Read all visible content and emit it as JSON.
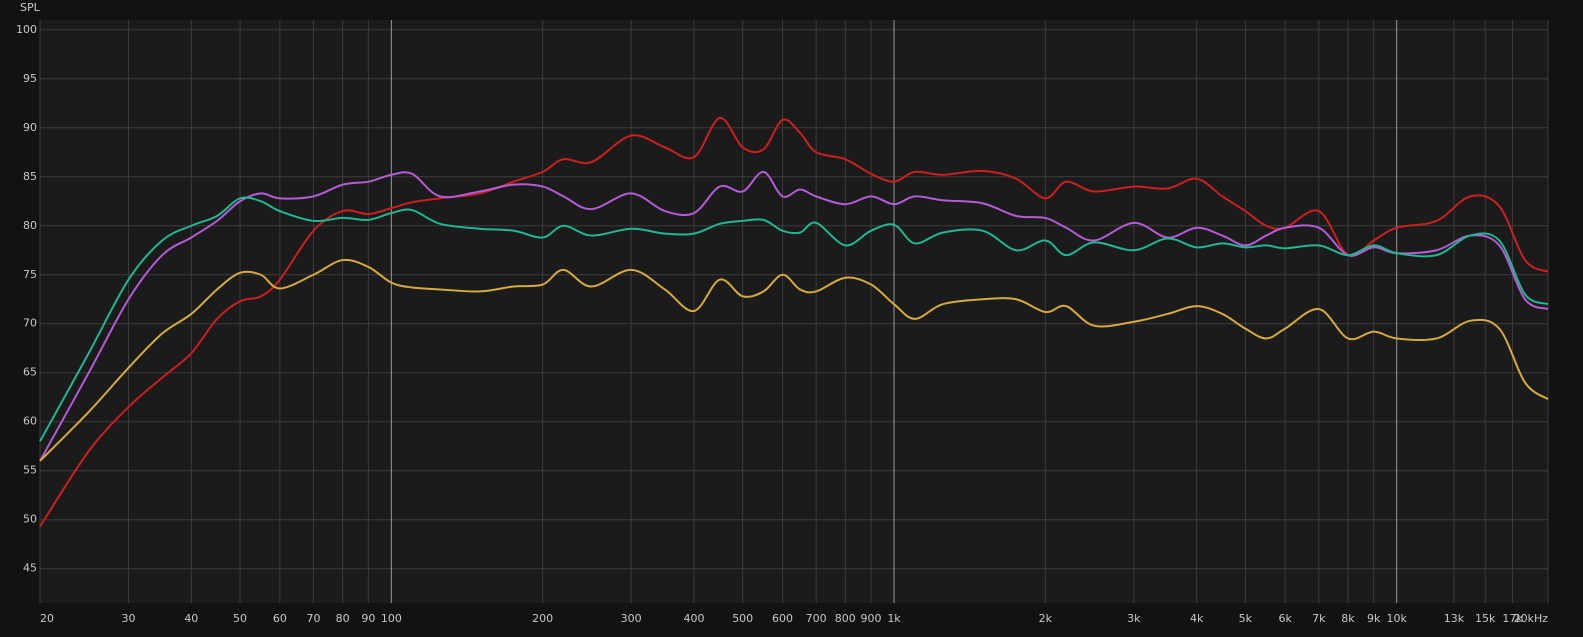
{
  "chart_data": {
    "type": "line",
    "y_label": "SPL",
    "log_x": true,
    "grid": true,
    "xlim": [
      20,
      20000
    ],
    "ylim": [
      41.5,
      101
    ],
    "yticks": [
      45,
      50,
      55,
      60,
      65,
      70,
      75,
      80,
      85,
      90,
      95,
      100
    ],
    "xticks": [
      20,
      30,
      40,
      50,
      60,
      70,
      80,
      90,
      100,
      200,
      300,
      400,
      500,
      600,
      700,
      800,
      900,
      {
        "value": 1000,
        "label": "1k"
      },
      {
        "value": 2000,
        "label": "2k"
      },
      {
        "value": 3000,
        "label": "3k"
      },
      {
        "value": 4000,
        "label": "4k"
      },
      {
        "value": 5000,
        "label": "5k"
      },
      {
        "value": 6000,
        "label": "6k"
      },
      {
        "value": 7000,
        "label": "7k"
      },
      {
        "value": 8000,
        "label": "8k"
      },
      {
        "value": 9000,
        "label": "9k"
      },
      {
        "value": 10000,
        "label": "10k"
      },
      {
        "value": 13000,
        "label": "13k"
      },
      {
        "value": 15000,
        "label": "15k"
      },
      {
        "value": 17000,
        "label": "17k"
      },
      {
        "value": 20000,
        "label": "20kHz"
      }
    ],
    "x": [
      20,
      25,
      30,
      35,
      40,
      45,
      50,
      55,
      60,
      70,
      80,
      90,
      100,
      110,
      125,
      150,
      175,
      200,
      220,
      250,
      300,
      350,
      400,
      450,
      500,
      550,
      600,
      650,
      700,
      800,
      900,
      1000,
      1100,
      1250,
      1500,
      1750,
      2000,
      2200,
      2500,
      3000,
      3500,
      4000,
      4500,
      5000,
      5500,
      6000,
      7000,
      8000,
      9000,
      10000,
      12000,
      14000,
      16000,
      18000,
      20000
    ],
    "series": [
      {
        "color": "#cc1f1f",
        "values": [
          49.3,
          57,
          61.5,
          64.5,
          67,
          70.5,
          72.3,
          72.8,
          74.5,
          79.5,
          81.5,
          81.2,
          81.8,
          82.4,
          82.8,
          83.3,
          84.5,
          85.5,
          86.8,
          86.5,
          89.2,
          88,
          87,
          91,
          88,
          87.8,
          90.8,
          89.5,
          87.5,
          86.8,
          85.3,
          84.5,
          85.5,
          85.2,
          85.6,
          84.8,
          82.8,
          84.5,
          83.5,
          84,
          83.8,
          84.8,
          83,
          81.5,
          80,
          79.8,
          81.5,
          77,
          78.5,
          79.8,
          80.5,
          83,
          82,
          76.5,
          75.3
        ]
      },
      {
        "color": "#b65ad8",
        "values": [
          56,
          65,
          72.5,
          77,
          78.8,
          80.5,
          82.5,
          83.3,
          82.8,
          83,
          84.2,
          84.5,
          85.2,
          85.3,
          83,
          83.5,
          84.2,
          84,
          83,
          81.7,
          83.3,
          81.5,
          81.3,
          84,
          83.5,
          85.5,
          83,
          83.7,
          83,
          82.2,
          83,
          82.2,
          83,
          82.6,
          82.3,
          81,
          80.8,
          79.8,
          78.5,
          80.3,
          78.8,
          79.8,
          79,
          78,
          79,
          79.8,
          79.8,
          77,
          77.8,
          77.2,
          77.5,
          79,
          78,
          72.5,
          71.5
        ]
      },
      {
        "color": "#1fb890",
        "values": [
          58,
          67,
          74.5,
          78.5,
          80,
          81,
          82.8,
          82.5,
          81.5,
          80.5,
          80.8,
          80.6,
          81.3,
          81.6,
          80.2,
          79.7,
          79.5,
          78.8,
          80,
          79,
          79.7,
          79.2,
          79.2,
          80.2,
          80.5,
          80.6,
          79.5,
          79.3,
          80.3,
          78,
          79.5,
          80.1,
          78.2,
          79.3,
          79.5,
          77.5,
          78.5,
          77,
          78.3,
          77.5,
          78.7,
          77.8,
          78.2,
          77.8,
          78,
          77.7,
          78,
          77,
          78,
          77.2,
          77,
          79,
          78.5,
          73,
          72
        ]
      },
      {
        "color": "#d6aa3c",
        "values": [
          56,
          61,
          65.5,
          69,
          71,
          73.5,
          75.2,
          75,
          73.6,
          75,
          76.5,
          75.8,
          74.2,
          73.7,
          73.5,
          73.3,
          73.8,
          74,
          75.5,
          73.8,
          75.5,
          73.5,
          71.3,
          74.5,
          72.8,
          73.3,
          75,
          73.5,
          73.3,
          74.7,
          74,
          72,
          70.5,
          72,
          72.5,
          72.5,
          71.2,
          71.8,
          69.8,
          70.2,
          71,
          71.8,
          71,
          69.5,
          68.5,
          69.5,
          71.5,
          68.5,
          69.2,
          68.5,
          68.5,
          70.3,
          69.5,
          64,
          62.3
        ]
      }
    ]
  }
}
